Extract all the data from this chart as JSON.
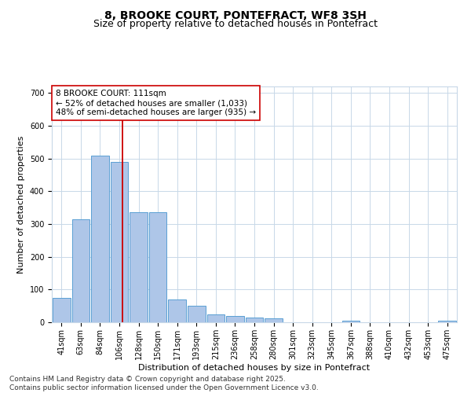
{
  "title_line1": "8, BROOKE COURT, PONTEFRACT, WF8 3SH",
  "title_line2": "Size of property relative to detached houses in Pontefract",
  "xlabel": "Distribution of detached houses by size in Pontefract",
  "ylabel": "Number of detached properties",
  "footer_line1": "Contains HM Land Registry data © Crown copyright and database right 2025.",
  "footer_line2": "Contains public sector information licensed under the Open Government Licence v3.0.",
  "bin_labels": [
    "41sqm",
    "63sqm",
    "84sqm",
    "106sqm",
    "128sqm",
    "150sqm",
    "171sqm",
    "193sqm",
    "215sqm",
    "236sqm",
    "258sqm",
    "280sqm",
    "301sqm",
    "323sqm",
    "345sqm",
    "367sqm",
    "388sqm",
    "410sqm",
    "432sqm",
    "453sqm",
    "475sqm"
  ],
  "bar_values": [
    75,
    315,
    510,
    490,
    335,
    335,
    70,
    50,
    25,
    20,
    15,
    12,
    0,
    0,
    0,
    5,
    0,
    0,
    0,
    0,
    5
  ],
  "bar_color": "#aec6e8",
  "bar_edge_color": "#5a9fd4",
  "vline_color": "#cc0000",
  "vline_pos": 3.15,
  "annotation_text": "8 BROOKE COURT: 111sqm\n← 52% of detached houses are smaller (1,033)\n48% of semi-detached houses are larger (935) →",
  "annotation_box_color": "#ffffff",
  "annotation_box_edge_color": "#cc0000",
  "ylim": [
    0,
    720
  ],
  "yticks": [
    0,
    100,
    200,
    300,
    400,
    500,
    600,
    700
  ],
  "background_color": "#ffffff",
  "grid_color": "#c8d8e8",
  "title_fontsize": 10,
  "subtitle_fontsize": 9,
  "axis_label_fontsize": 8,
  "tick_fontsize": 7,
  "annotation_fontsize": 7.5,
  "footer_fontsize": 6.5
}
